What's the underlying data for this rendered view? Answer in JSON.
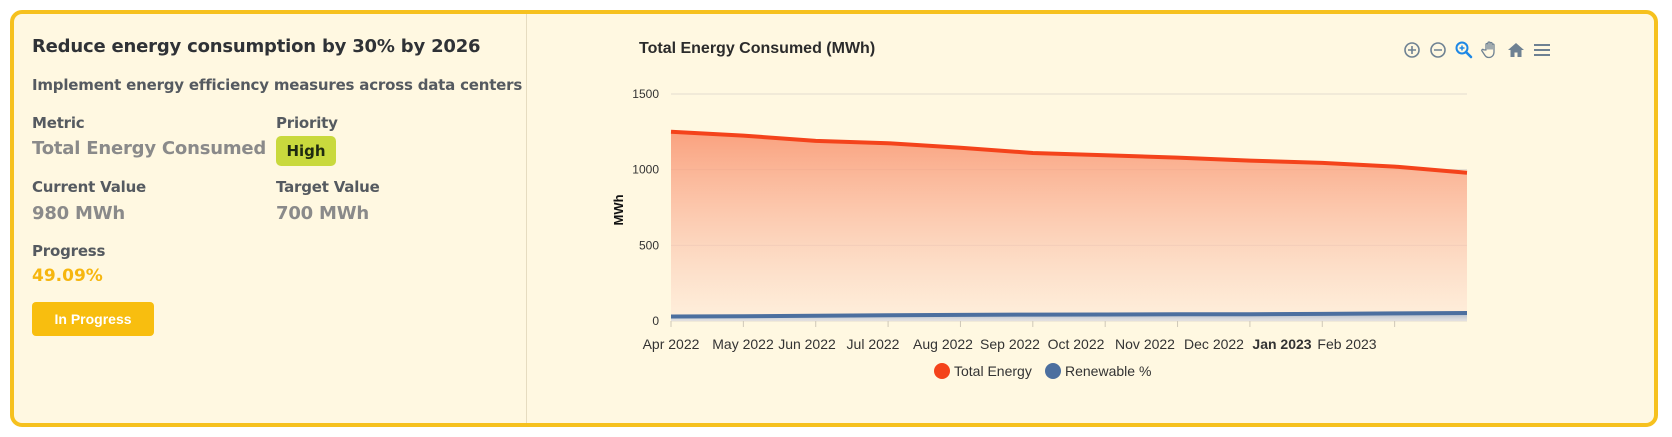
{
  "goal": {
    "title": "Reduce energy consumption by 30% by 2026",
    "description": "Implement energy efficiency measures across data centers",
    "metric_label": "Metric",
    "metric_value": "Total Energy Consumed",
    "priority_label": "Priority",
    "priority_value": "High",
    "current_label": "Current Value",
    "current_value": "980 MWh",
    "target_label": "Target Value",
    "target_value": "700 MWh",
    "progress_label": "Progress",
    "progress_value": "49.09%",
    "status_label": "In Progress"
  },
  "colors": {
    "accent": "#f6c11e",
    "priority_badge": "#c9d93d",
    "total_energy": "#f4431b",
    "renewable": "#4c6f9f"
  },
  "toolbar": [
    "zoom-in-icon",
    "zoom-out-icon",
    "selection-zoom-icon",
    "pan-hand-icon",
    "home-reset-icon",
    "menu-icon"
  ],
  "chart_data": {
    "type": "area",
    "title": "Total Energy Consumed (MWh)",
    "ylabel": "MWh",
    "ylim": [
      0,
      1500
    ],
    "yticks": [
      "0",
      "500",
      "1000",
      "1500"
    ],
    "x_tick_labels": [
      "Apr 2022",
      "May 2022",
      "Jun 2022",
      "Jul 2022",
      "Aug 2022",
      "Sep 2022",
      "Oct 2022",
      "Nov 2022",
      "Dec 2022",
      "Jan 2023",
      "Feb 2023"
    ],
    "x_bold_tick": "2023",
    "x": [
      "2022-04",
      "2022-05",
      "2022-06",
      "2022-07",
      "2022-08",
      "2022-09",
      "2022-10",
      "2022-11",
      "2022-12",
      "2023-01",
      "2023-02",
      "2023-03"
    ],
    "series": [
      {
        "name": "Total Energy",
        "values": [
          1250,
          1225,
          1190,
          1175,
          1145,
          1110,
          1095,
          1080,
          1060,
          1045,
          1020,
          980
        ]
      },
      {
        "name": "Renewable %",
        "values": [
          30,
          32,
          35,
          38,
          40,
          42,
          43,
          44,
          45,
          47,
          50,
          53
        ]
      }
    ],
    "legend_position": "bottom",
    "grid": true
  }
}
